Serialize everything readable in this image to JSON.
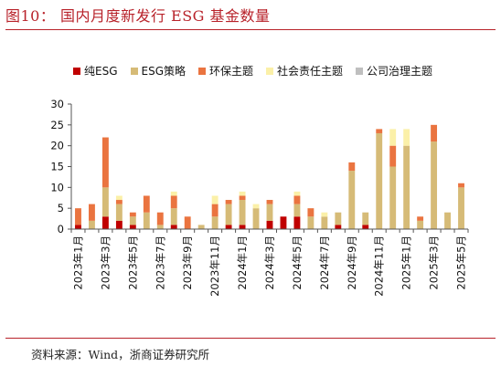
{
  "header": {
    "title": "图10：  国内月度新发行 ESG 基金数量"
  },
  "footer": {
    "source": "资料来源：Wind，浙商证券研究所"
  },
  "colors": {
    "rule": "#b8222a",
    "axis": "#555555"
  },
  "chart_data": {
    "type": "bar",
    "stacked": true,
    "title": "",
    "xlabel": "",
    "ylabel": "",
    "ylim": [
      0,
      30
    ],
    "yticks": [
      0,
      5,
      10,
      15,
      20,
      25,
      30
    ],
    "grid": false,
    "legend_position": "top",
    "categories": [
      "2023年1月",
      "2023年2月",
      "2023年3月",
      "2023年4月",
      "2023年5月",
      "2023年6月",
      "2023年7月",
      "2023年8月",
      "2023年9月",
      "2023年10月",
      "2023年11月",
      "2023年12月",
      "2024年1月",
      "2024年2月",
      "2024年3月",
      "2024年4月",
      "2024年5月",
      "2024年6月",
      "2024年7月",
      "2024年8月",
      "2024年9月",
      "2024年10月",
      "2024年11月",
      "2024年12月",
      "2025年1月",
      "2025年2月",
      "2025年3月",
      "2025年4月",
      "2025年5月"
    ],
    "shown_tick_labels": [
      "2023年1月",
      "2023年3月",
      "2023年5月",
      "2023年7月",
      "2023年9月",
      "2023年11月",
      "2024年1月",
      "2024年3月",
      "2024年5月",
      "2024年7月",
      "2024年9月",
      "2024年11月",
      "2025年1月",
      "2025年3月",
      "2025年5月"
    ],
    "series": [
      {
        "name": "纯ESG",
        "color": "#c00000",
        "values": [
          1,
          0,
          3,
          2,
          1,
          0,
          0,
          1,
          0,
          0,
          0,
          1,
          1,
          0,
          2,
          3,
          3,
          0,
          0,
          1,
          0,
          1,
          0,
          0,
          0,
          0,
          0,
          0,
          0
        ]
      },
      {
        "name": "ESG策略",
        "color": "#d6bb77",
        "values": [
          0,
          2,
          7,
          4,
          2,
          4,
          1,
          4,
          0,
          1,
          3,
          5,
          6,
          5,
          4,
          0,
          3,
          3,
          3,
          3,
          14,
          3,
          23,
          15,
          20,
          2,
          21,
          4,
          10
        ]
      },
      {
        "name": "环保主题",
        "color": "#ea7440",
        "values": [
          4,
          4,
          12,
          1,
          1,
          4,
          3,
          3,
          3,
          0,
          3,
          1,
          1,
          0,
          1,
          0,
          2,
          2,
          0,
          0,
          2,
          0,
          1,
          5,
          0,
          1,
          4,
          0,
          1
        ]
      },
      {
        "name": "社会责任主题",
        "color": "#fbf0a8",
        "values": [
          0,
          0,
          0,
          1,
          0,
          0,
          0,
          1,
          0,
          0,
          2,
          0,
          1,
          1,
          0,
          0,
          1,
          0,
          1,
          0,
          0,
          0,
          0,
          4,
          4,
          0,
          0,
          0,
          0
        ]
      },
      {
        "name": "公司治理主题",
        "color": "#bfbfbf",
        "values": [
          0,
          0,
          0,
          0,
          0,
          0,
          0,
          0,
          0,
          0,
          0,
          0,
          0,
          0,
          0,
          0,
          0,
          0,
          0,
          0,
          0,
          0,
          0,
          0,
          0,
          0,
          0,
          0,
          0
        ]
      }
    ]
  }
}
